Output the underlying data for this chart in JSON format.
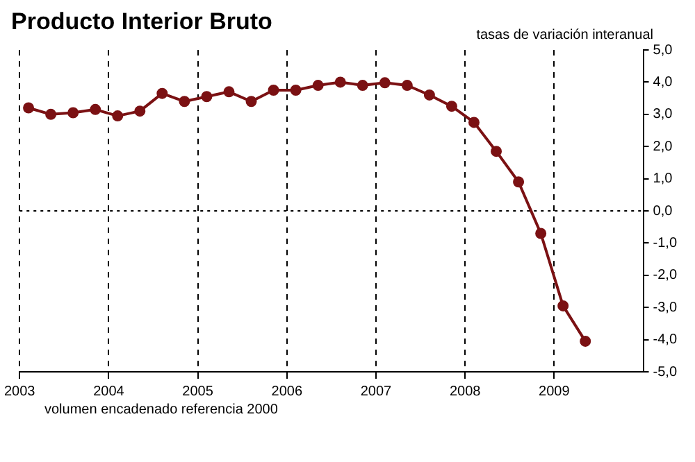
{
  "chart_data": {
    "type": "line",
    "title": "Producto Interior Bruto",
    "ylabel": "tasas de variación interanual",
    "annotations": [
      "volumen encadenado referencia 2000"
    ],
    "x": [
      2003.1,
      2003.35,
      2003.6,
      2003.85,
      2004.1,
      2004.35,
      2004.6,
      2004.85,
      2005.1,
      2005.35,
      2005.6,
      2005.85,
      2006.1,
      2006.35,
      2006.6,
      2006.85,
      2007.1,
      2007.35,
      2007.6,
      2007.85,
      2008.1,
      2008.35,
      2008.6,
      2008.85,
      2009.1,
      2009.35
    ],
    "series": [
      {
        "color": "#7b1113",
        "values": [
          3.2,
          3.0,
          3.05,
          3.15,
          2.95,
          3.1,
          3.65,
          3.4,
          3.55,
          3.7,
          3.4,
          3.75,
          3.75,
          3.9,
          4.0,
          3.9,
          3.98,
          3.9,
          3.6,
          3.25,
          2.75,
          1.85,
          0.9,
          -0.7,
          -2.95,
          -4.05
        ]
      }
    ],
    "xlim": [
      2003,
      2010
    ],
    "xticks": [
      2003,
      2004,
      2005,
      2006,
      2007,
      2008,
      2009
    ],
    "ylim": [
      -5,
      5
    ],
    "yticks": [
      {
        "value": 5,
        "label": "5,0"
      },
      {
        "value": 4,
        "label": "4,0"
      },
      {
        "value": 3,
        "label": "3,0"
      },
      {
        "value": 2,
        "label": "2,0"
      },
      {
        "value": 1,
        "label": "1,0"
      },
      {
        "value": 0,
        "label": "0,0"
      },
      {
        "value": -1,
        "label": "-1,0"
      },
      {
        "value": -2,
        "label": "-2,0"
      },
      {
        "value": -3,
        "label": "-3,0"
      },
      {
        "value": -4,
        "label": "-4,0"
      },
      {
        "value": -5,
        "label": "-5,0"
      }
    ],
    "ref_lines": [
      {
        "axis": "y",
        "value": 0,
        "line_style": "dotted",
        "color": "#000000"
      }
    ],
    "grid": "x",
    "legend": false,
    "marker": "circle",
    "line_style": "solid"
  }
}
